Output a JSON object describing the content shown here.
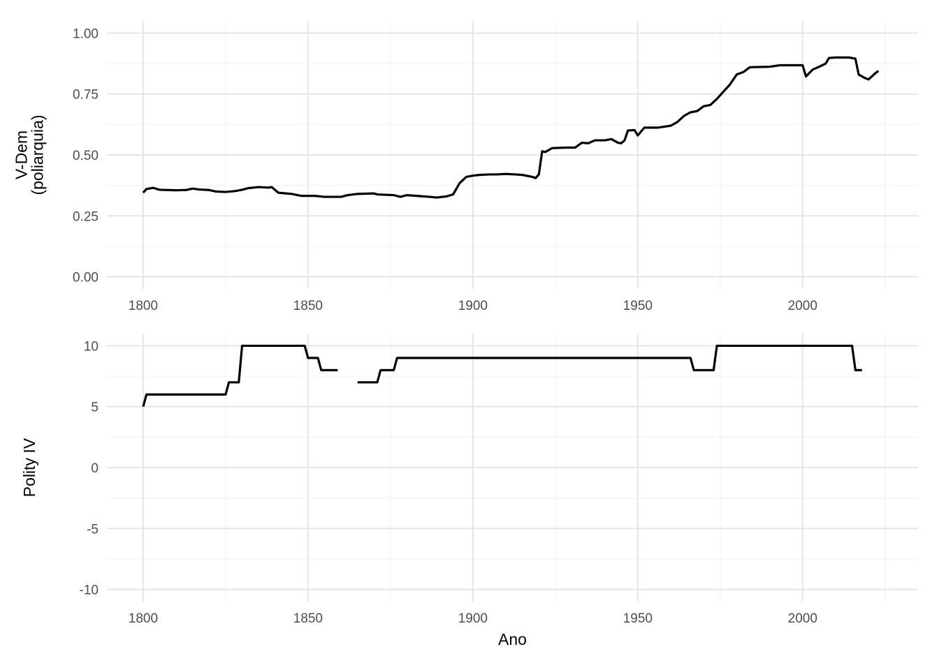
{
  "chart_data": [
    {
      "type": "line",
      "title": "",
      "xlabel": "",
      "ylabel": "V-Dem\n(poliarquia)",
      "xlim": [
        1789,
        2035
      ],
      "ylim": [
        -0.05,
        1.05
      ],
      "x_ticks": [
        1800,
        1850,
        1900,
        1950,
        2000
      ],
      "x_tick_labels": [
        "1800",
        "1850",
        "1900",
        "1950",
        "2000"
      ],
      "y_ticks": [
        0,
        0.25,
        0.5,
        0.75,
        1
      ],
      "y_tick_labels": [
        "0.00",
        "0.25",
        "0.50",
        "0.75",
        "1.00"
      ],
      "grid": true,
      "series": [
        {
          "color": "#000000",
          "points": [
            [
              1800,
              0.345
            ],
            [
              1801,
              0.36
            ],
            [
              1803,
              0.365
            ],
            [
              1805,
              0.357
            ],
            [
              1810,
              0.355
            ],
            [
              1813,
              0.356
            ],
            [
              1815,
              0.362
            ],
            [
              1817,
              0.358
            ],
            [
              1820,
              0.356
            ],
            [
              1822,
              0.35
            ],
            [
              1825,
              0.348
            ],
            [
              1828,
              0.352
            ],
            [
              1830,
              0.357
            ],
            [
              1832,
              0.364
            ],
            [
              1835,
              0.368
            ],
            [
              1838,
              0.366
            ],
            [
              1839,
              0.368
            ],
            [
              1841,
              0.345
            ],
            [
              1845,
              0.34
            ],
            [
              1848,
              0.332
            ],
            [
              1852,
              0.332
            ],
            [
              1855,
              0.328
            ],
            [
              1860,
              0.328
            ],
            [
              1862,
              0.335
            ],
            [
              1865,
              0.34
            ],
            [
              1870,
              0.342
            ],
            [
              1871,
              0.338
            ],
            [
              1876,
              0.335
            ],
            [
              1878,
              0.328
            ],
            [
              1880,
              0.335
            ],
            [
              1885,
              0.33
            ],
            [
              1887,
              0.328
            ],
            [
              1889,
              0.325
            ],
            [
              1892,
              0.33
            ],
            [
              1894,
              0.338
            ],
            [
              1896,
              0.385
            ],
            [
              1898,
              0.41
            ],
            [
              1900,
              0.415
            ],
            [
              1902,
              0.418
            ],
            [
              1905,
              0.42
            ],
            [
              1907,
              0.42
            ],
            [
              1910,
              0.422
            ],
            [
              1913,
              0.42
            ],
            [
              1915,
              0.418
            ],
            [
              1918,
              0.41
            ],
            [
              1919,
              0.405
            ],
            [
              1920,
              0.42
            ],
            [
              1921,
              0.515
            ],
            [
              1922,
              0.512
            ],
            [
              1924,
              0.528
            ],
            [
              1928,
              0.53
            ],
            [
              1931,
              0.53
            ],
            [
              1933,
              0.55
            ],
            [
              1935,
              0.548
            ],
            [
              1937,
              0.56
            ],
            [
              1940,
              0.56
            ],
            [
              1942,
              0.565
            ],
            [
              1944,
              0.55
            ],
            [
              1945,
              0.548
            ],
            [
              1946,
              0.56
            ],
            [
              1947,
              0.6
            ],
            [
              1949,
              0.602
            ],
            [
              1950,
              0.58
            ],
            [
              1952,
              0.612
            ],
            [
              1956,
              0.612
            ],
            [
              1960,
              0.62
            ],
            [
              1962,
              0.635
            ],
            [
              1964,
              0.66
            ],
            [
              1966,
              0.675
            ],
            [
              1968,
              0.68
            ],
            [
              1970,
              0.7
            ],
            [
              1972,
              0.705
            ],
            [
              1974,
              0.73
            ],
            [
              1976,
              0.76
            ],
            [
              1978,
              0.79
            ],
            [
              1980,
              0.83
            ],
            [
              1982,
              0.84
            ],
            [
              1984,
              0.86
            ],
            [
              1990,
              0.862
            ],
            [
              1993,
              0.868
            ],
            [
              1997,
              0.868
            ],
            [
              2000,
              0.868
            ],
            [
              2001,
              0.822
            ],
            [
              2003,
              0.85
            ],
            [
              2005,
              0.862
            ],
            [
              2007,
              0.875
            ],
            [
              2008,
              0.898
            ],
            [
              2010,
              0.9
            ],
            [
              2012,
              0.9
            ],
            [
              2014,
              0.9
            ],
            [
              2016,
              0.895
            ],
            [
              2017,
              0.83
            ],
            [
              2019,
              0.815
            ],
            [
              2020,
              0.81
            ],
            [
              2022,
              0.835
            ],
            [
              2023,
              0.845
            ]
          ]
        }
      ]
    },
    {
      "type": "line",
      "title": "",
      "xlabel": "Ano",
      "ylabel": "Polity IV",
      "xlim": [
        1789,
        2035
      ],
      "ylim": [
        -11,
        11
      ],
      "x_ticks": [
        1800,
        1850,
        1900,
        1950,
        2000
      ],
      "x_tick_labels": [
        "1800",
        "1850",
        "1900",
        "1950",
        "2000"
      ],
      "y_ticks": [
        -10,
        -5,
        0,
        5,
        10
      ],
      "y_tick_labels": [
        "-10",
        "-5",
        "0",
        "5",
        "10"
      ],
      "grid": true,
      "series": [
        {
          "color": "#000000",
          "segments": [
            [
              [
                1800,
                5
              ],
              [
                1801,
                6
              ],
              [
                1825,
                6
              ],
              [
                1826,
                7
              ],
              [
                1829,
                7
              ],
              [
                1830,
                10
              ],
              [
                1849,
                10
              ],
              [
                1850,
                9
              ],
              [
                1853,
                9
              ],
              [
                1854,
                8
              ],
              [
                1859,
                8
              ]
            ],
            [
              [
                1865,
                7
              ],
              [
                1871,
                7
              ],
              [
                1872,
                8
              ],
              [
                1876,
                8
              ],
              [
                1877,
                9
              ],
              [
                1966,
                9
              ],
              [
                1967,
                8
              ],
              [
                1973,
                8
              ],
              [
                1974,
                10
              ],
              [
                2015,
                10
              ],
              [
                2016,
                8
              ],
              [
                2018,
                8
              ]
            ]
          ]
        }
      ]
    }
  ]
}
